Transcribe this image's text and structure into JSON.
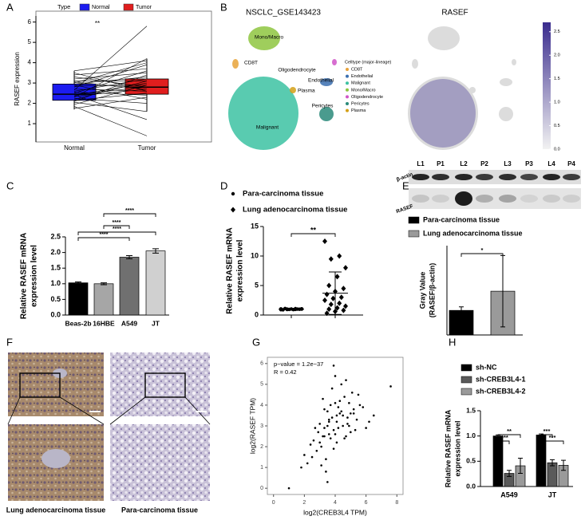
{
  "panel_labels": [
    "A",
    "B",
    "C",
    "D",
    "E",
    "F",
    "G",
    "H"
  ],
  "chart_data": [
    {
      "type": "box",
      "legend_title": "Type",
      "ylabel": "RASEF expression",
      "categories": [
        "Normal",
        "Tumor"
      ],
      "ylim": [
        0.1,
        6.3
      ],
      "yticks": [
        1,
        2,
        3,
        4,
        5,
        6
      ],
      "annotation": "**",
      "series": [
        {
          "name": "Normal",
          "color": "#1c1cf0",
          "values": [
            1.75,
            1.85,
            1.95,
            2.05,
            2.1,
            2.15,
            2.2,
            2.25,
            2.3,
            2.35,
            2.4,
            2.42,
            2.45,
            2.5,
            2.55,
            2.6,
            2.65,
            2.7,
            2.8,
            2.85,
            2.9,
            2.95,
            3.0,
            3.05,
            3.1,
            3.2,
            3.3,
            3.4,
            3.5,
            3.6
          ],
          "box": {
            "min": 1.7,
            "q1": 2.15,
            "median": 2.45,
            "q3": 2.95,
            "max": 3.6
          }
        },
        {
          "name": "Tumor",
          "color": "#e01e1e",
          "values": [
            2.3,
            0.4,
            2.9,
            1.6,
            3.4,
            2.5,
            3.1,
            2.0,
            4.2,
            2.7,
            3.0,
            1.2,
            2.8,
            3.6,
            2.4,
            3.2,
            5.8,
            2.6,
            3.9,
            2.9,
            2.2,
            3.3,
            4.0,
            2.7,
            3.1,
            3.5,
            2.8,
            3.7,
            2.6,
            4.1
          ],
          "box": {
            "min": 1.6,
            "q1": 2.45,
            "median": 2.8,
            "q3": 3.2,
            "max": 4.2
          }
        }
      ]
    },
    {
      "type": "embedding",
      "title": "NSCLC_GSE143423",
      "legend_title": "Celltype (major-lineage)",
      "clusters": [
        {
          "name": "CD8T",
          "color": "#e8a33a"
        },
        {
          "name": "Endothelial",
          "color": "#3a6fb0"
        },
        {
          "name": "Malignant",
          "color": "#3cc2a2"
        },
        {
          "name": "Mono/Macro",
          "color": "#8ec63f"
        },
        {
          "name": "Oligodendrocyte",
          "color": "#d055c8"
        },
        {
          "name": "Pericytes",
          "color": "#2a8a7a"
        },
        {
          "name": "Plasma",
          "color": "#d4a017"
        }
      ]
    },
    {
      "type": "featuremap",
      "title": "RASEF",
      "zlim": [
        0,
        2.7
      ],
      "zticks": [
        {
          "value": 0,
          "label": "0.0"
        },
        {
          "value": 0.5,
          "label": "0.5"
        },
        {
          "value": 1,
          "label": "1.0"
        },
        {
          "value": 1.5,
          "label": "1.5"
        },
        {
          "value": 2,
          "label": "2.0"
        },
        {
          "value": 2.5,
          "label": "2.5"
        }
      ],
      "colors": [
        "#f2f2f2",
        "#3a2c8e"
      ]
    },
    {
      "type": "bar",
      "ylabel": [
        "Relative RASEF mRNA",
        "expression level"
      ],
      "categories": [
        "Beas-2b",
        "16HBE",
        "A549",
        "JT"
      ],
      "values": [
        1.03,
        1.0,
        1.85,
        2.05
      ],
      "errors": [
        0.03,
        0.03,
        0.05,
        0.07
      ],
      "colors": [
        "#000000",
        "#a6a6a6",
        "#707070",
        "#d0d0d0"
      ],
      "ylim": [
        0,
        2.5
      ],
      "yticks": [
        {
          "value": 0,
          "label": "0.0"
        },
        {
          "value": 0.5,
          "label": "0.5"
        },
        {
          "value": 1,
          "label": "1.0"
        },
        {
          "value": 1.5,
          "label": "1.5"
        },
        {
          "value": 2,
          "label": "2.0"
        },
        {
          "value": 2.5,
          "label": "2.5"
        }
      ],
      "significance": [
        "****",
        "****",
        "****",
        "****"
      ]
    },
    {
      "type": "dotplot",
      "ylabel": [
        "Relative RASEF  mRNA",
        "expression level"
      ],
      "ylim": [
        0,
        15
      ],
      "yticks": [
        0,
        5,
        10,
        15
      ],
      "significance": [
        "**"
      ],
      "series": [
        {
          "name": "Para-carcinoma tissue",
          "marker": "circle",
          "values": [
            0.9,
            0.95,
            1.0,
            1.05,
            0.92,
            1.1,
            0.98,
            1.02,
            0.88,
            1.0,
            0.96,
            1.04,
            1.08,
            0.94,
            1.0
          ],
          "mean": 1.0,
          "sd": 0.06
        },
        {
          "name": "Lung adenocarcinoma tissue",
          "marker": "diamond",
          "values": [
            12.5,
            10.0,
            9.5,
            8.0,
            6.5,
            5.0,
            4.5,
            4.0,
            3.5,
            3.0,
            2.8,
            2.5,
            2.0,
            1.8,
            1.5,
            1.2,
            1.0,
            0.8,
            0.6,
            0.3
          ],
          "mean": 3.7,
          "sd": 3.6
        }
      ]
    },
    {
      "type": "blot",
      "lanes": [
        "L1",
        "P1",
        "L2",
        "P2",
        "L3",
        "P3",
        "L4",
        "P4"
      ],
      "rows": [
        "β-actin",
        "RASEF"
      ]
    },
    {
      "type": "grouped_bar",
      "ylabel": [
        "Gray Value",
        "(RASEF/β-actin)"
      ],
      "ylim": [
        0,
        2
      ],
      "significance": [
        "*"
      ],
      "series": [
        {
          "name": "Para-carcinoma tissue",
          "color": "#000000",
          "values": [
            0.55
          ],
          "errors": [
            0.08
          ]
        },
        {
          "name": "Lung adenocarcinoma tissue",
          "color": "#9a9a9a",
          "values": [
            0.98
          ],
          "errors": [
            0.8
          ]
        }
      ]
    },
    {
      "type": "images",
      "captions": [
        "Lung adenocarcinoma  tissue",
        "Para-carcinoma tissue"
      ]
    },
    {
      "type": "scatter",
      "xlabel": "log2(CREB3L4 TPM)",
      "ylabel": "log2(RASEF TPM)",
      "annotations": [
        "p−value = 1.2e−37",
        "R = 0.42"
      ],
      "xlim": [
        -0.4,
        8.4
      ],
      "ylim": [
        -0.3,
        6.3
      ],
      "xticks": [
        0,
        2,
        4,
        6,
        8
      ],
      "yticks": [
        0,
        1,
        2,
        3,
        4,
        5,
        6
      ],
      "x": [
        3.2,
        3.5,
        2.8,
        4.1,
        3.9,
        4.5,
        3.0,
        3.7,
        4.8,
        5.2,
        2.5,
        3.3,
        3.6,
        4.0,
        4.3,
        4.6,
        5.0,
        5.5,
        2.2,
        2.9,
        3.4,
        3.8,
        4.2,
        4.4,
        4.9,
        5.3,
        5.8,
        6.2,
        3.1,
        3.5,
        3.9,
        4.1,
        4.7,
        5.1,
        2.6,
        3.0,
        3.6,
        4.0,
        4.5,
        4.8,
        5.4,
        6.0,
        1.0,
        1.8,
        2.4,
        7.6,
        3.3,
        3.7,
        4.2,
        4.6,
        5.0,
        3.4,
        3.8,
        4.3,
        2.7,
        3.2,
        4.9,
        5.6,
        3.5,
        4.1,
        6.5,
        2.0,
        3.9,
        4.4,
        3.1,
        3.6,
        4.0,
        5.2,
        4.7,
        3.3
      ],
      "y": [
        2.5,
        3.0,
        1.8,
        3.2,
        2.8,
        3.5,
        2.2,
        4.0,
        3.1,
        3.8,
        1.5,
        2.9,
        3.3,
        2.6,
        4.2,
        2.4,
        3.6,
        4.5,
        1.2,
        2.7,
        0.8,
        3.4,
        2.9,
        5.0,
        4.1,
        2.8,
        3.9,
        3.2,
        2.0,
        3.7,
        1.9,
        3.5,
        2.5,
        4.6,
        2.3,
        3.1,
        2.6,
        5.4,
        3.0,
        3.4,
        3.3,
        2.9,
        0.0,
        1.0,
        2.1,
        4.9,
        3.8,
        2.4,
        3.9,
        4.4,
        2.7,
        1.4,
        4.8,
        3.6,
        2.9,
        4.3,
        3.0,
        4.0,
        0.3,
        2.2,
        3.5,
        1.6,
        5.9,
        3.7,
        1.1,
        3.2,
        4.1,
        3.6,
        5.2,
        2.5
      ]
    },
    {
      "type": "grouped_bar",
      "ylabel": [
        "Relative RASEF  mRNA",
        "expression level"
      ],
      "categories": [
        "A549",
        "JT"
      ],
      "ylim": [
        0,
        1.5
      ],
      "yticks": [
        {
          "value": 0,
          "label": "0.0"
        },
        {
          "value": 0.5,
          "label": "0.5"
        },
        {
          "value": 1,
          "label": "1.0"
        },
        {
          "value": 1.5,
          "label": "1.5"
        }
      ],
      "significance": [
        "****",
        "**",
        "***",
        "***"
      ],
      "series": [
        {
          "name": "sh-NC",
          "color": "#000000",
          "values": [
            1.0,
            1.02
          ],
          "errors": [
            0.02,
            0.02
          ]
        },
        {
          "name": "sh-CREB3L4-1",
          "color": "#5a5a5a",
          "values": [
            0.26,
            0.47
          ],
          "errors": [
            0.06,
            0.06
          ]
        },
        {
          "name": "sh-CREB3L4-2",
          "color": "#9a9a9a",
          "values": [
            0.41,
            0.42
          ],
          "errors": [
            0.15,
            0.1
          ]
        }
      ]
    }
  ]
}
